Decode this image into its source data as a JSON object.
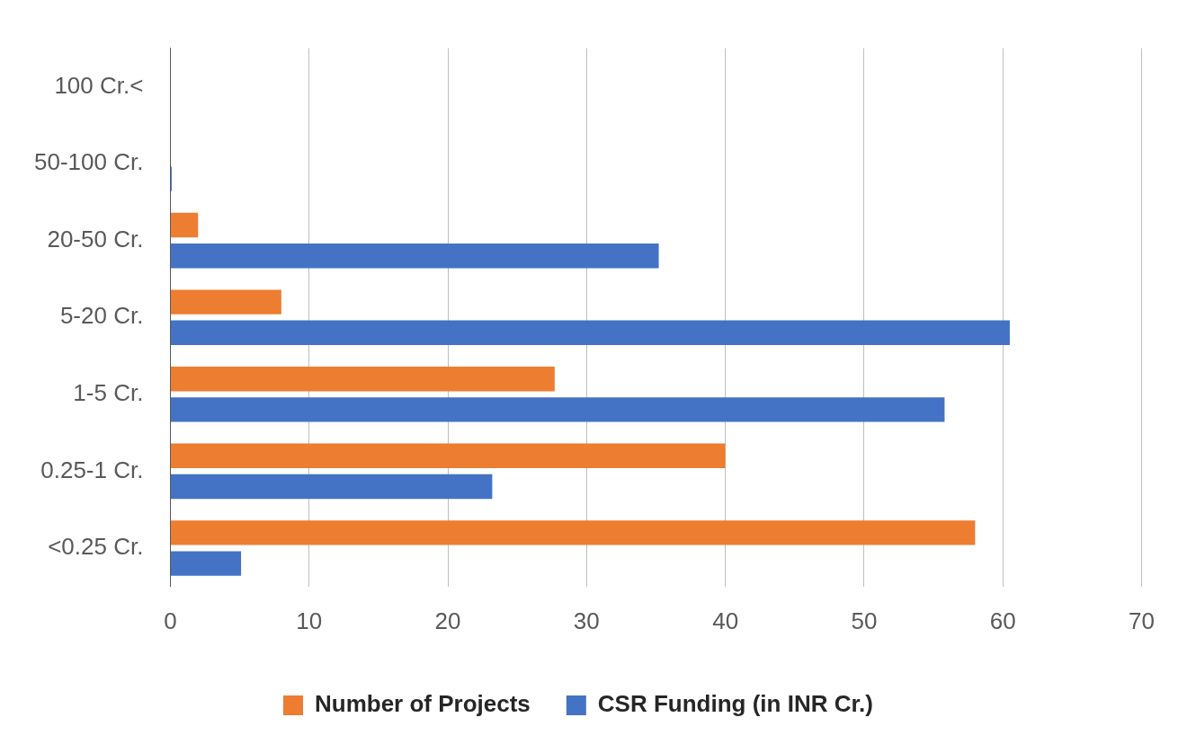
{
  "chart_data": {
    "type": "bar",
    "orientation": "horizontal",
    "categories": [
      "100 Cr.<",
      "50-100 Cr.",
      "20-50 Cr.",
      "5-20 Cr.",
      "1-5 Cr.",
      "0.25-1 Cr.",
      "<0.25 Cr."
    ],
    "series": [
      {
        "name": "Number of Projects",
        "color": "#ed7d31",
        "values": [
          0,
          0,
          2,
          8,
          27.7,
          40,
          58
        ]
      },
      {
        "name": "CSR Funding (in INR Cr.)",
        "color": "#4472c4",
        "values": [
          0,
          0.1,
          35.2,
          60.5,
          55.8,
          23.2,
          5.1
        ]
      }
    ],
    "xlim": [
      0,
      70
    ],
    "xticks": [
      0,
      10,
      20,
      30,
      40,
      50,
      60,
      70
    ],
    "grid": "x",
    "legend": "bottom"
  }
}
